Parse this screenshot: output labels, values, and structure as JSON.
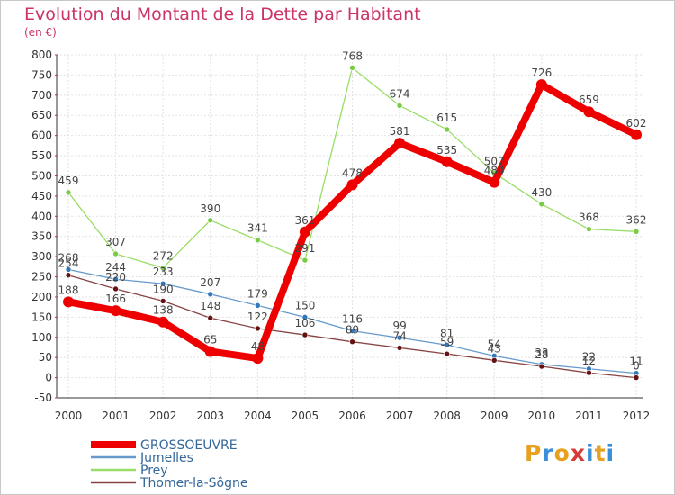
{
  "header": {
    "title": "Evolution du Montant de la Dette par Habitant",
    "subtitle": "(en €)"
  },
  "brand": {
    "letters": [
      "P",
      "r",
      "o",
      "x",
      "i",
      "t",
      "i"
    ],
    "colors": [
      "#e8a020",
      "#3a8fd8",
      "#e8a020",
      "#d83a3a",
      "#3a8fd8",
      "#e8a020",
      "#3a8fd8"
    ]
  },
  "chart_data": {
    "type": "line",
    "x": [
      "2000",
      "2001",
      "2002",
      "2003",
      "2004",
      "2005",
      "2006",
      "2007",
      "2008",
      "2009",
      "2010",
      "2011",
      "2012"
    ],
    "ylim": [
      -50,
      800
    ],
    "yticks": [
      -50,
      0,
      50,
      100,
      150,
      200,
      250,
      300,
      350,
      400,
      450,
      500,
      550,
      600,
      650,
      700,
      750,
      800
    ],
    "grid": true,
    "legend_position": "bottom-left",
    "series": [
      {
        "name": "Prey",
        "color": "#99dd66",
        "marker": "#77cc44",
        "values": [
          459,
          307,
          272,
          390,
          341,
          291,
          768,
          674,
          615,
          507,
          430,
          368,
          362
        ]
      },
      {
        "name": "Jumelles",
        "color": "#6699cc",
        "marker": "#3377bb",
        "values": [
          268,
          244,
          233,
          207,
          179,
          150,
          116,
          99,
          81,
          54,
          33,
          22,
          11
        ]
      },
      {
        "name": "Thomer-la-Sôgne",
        "color": "#884444",
        "marker": "#661111",
        "values": [
          254,
          220,
          190,
          148,
          122,
          106,
          89,
          74,
          59,
          43,
          28,
          12,
          0
        ]
      },
      {
        "name": "GROSSOEUVRE",
        "color": "#ee0000",
        "marker": "#ee0000",
        "values": [
          188,
          166,
          138,
          65,
          48,
          361,
          478,
          581,
          535,
          484,
          726,
          659,
          602
        ]
      }
    ],
    "legend_order": [
      "GROSSOEUVRE",
      "Jumelles",
      "Prey",
      "Thomer-la-Sôgne"
    ]
  }
}
